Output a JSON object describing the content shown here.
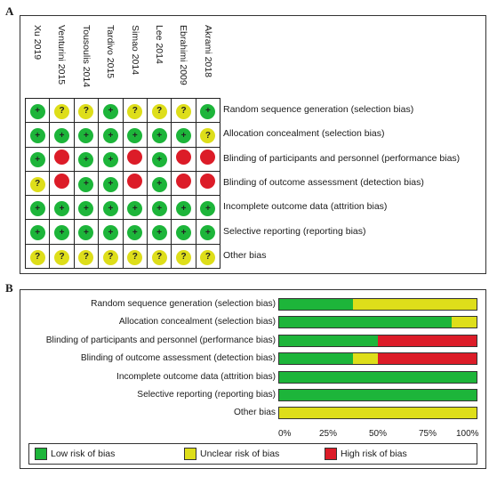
{
  "panel_a": {
    "letter": "A",
    "studies": [
      "Xu 2019",
      "Venturini 2015",
      "Tousoulis 2014",
      "Tardivo 2015",
      "Simao 2014",
      "Lee 2014",
      "Ebrahimi 2009",
      "Akrami 2018"
    ],
    "domains": [
      "Random sequence generation (selection bias)",
      "Allocation concealment (selection bias)",
      "Blinding of participants and personnel (performance bias)",
      "Blinding of outcome assessment (detection bias)",
      "Incomplete outcome data (attrition bias)",
      "Selective reporting (reporting bias)",
      "Other bias"
    ],
    "symbols": {
      "low": "+",
      "unclear": "?",
      "high": ""
    }
  },
  "panel_b": {
    "letter": "B",
    "ticks": [
      "0%",
      "25%",
      "50%",
      "75%",
      "100%"
    ],
    "legend": {
      "low": "Low risk of bias",
      "unclear": "Unclear risk of bias",
      "high": "High risk of bias"
    }
  },
  "colors": {
    "low": "#1db53a",
    "unclear": "#dede1a",
    "high": "#dc1c28"
  },
  "chart_data": [
    {
      "type": "table",
      "columns": [
        "Xu 2019",
        "Venturini 2015",
        "Tousoulis 2014",
        "Tardivo 2015",
        "Simao 2014",
        "Lee 2014",
        "Ebrahimi 2009",
        "Akrami 2018"
      ],
      "rows": [
        "Random sequence generation (selection bias)",
        "Allocation concealment (selection bias)",
        "Blinding of participants and personnel (performance bias)",
        "Blinding of outcome assessment (detection bias)",
        "Incomplete outcome data (attrition bias)",
        "Selective reporting (reporting bias)",
        "Other bias"
      ],
      "values": [
        [
          "low",
          "unclear",
          "unclear",
          "low",
          "unclear",
          "unclear",
          "unclear",
          "low"
        ],
        [
          "low",
          "low",
          "low",
          "low",
          "low",
          "low",
          "low",
          "unclear"
        ],
        [
          "low",
          "high",
          "low",
          "low",
          "high",
          "low",
          "high",
          "high"
        ],
        [
          "unclear",
          "high",
          "low",
          "low",
          "high",
          "low",
          "high",
          "high"
        ],
        [
          "low",
          "low",
          "low",
          "low",
          "low",
          "low",
          "low",
          "low"
        ],
        [
          "low",
          "low",
          "low",
          "low",
          "low",
          "low",
          "low",
          "low"
        ],
        [
          "unclear",
          "unclear",
          "unclear",
          "unclear",
          "unclear",
          "unclear",
          "unclear",
          "unclear"
        ]
      ]
    },
    {
      "type": "bar",
      "stacked": true,
      "orientation": "horizontal",
      "categories": [
        "Random sequence generation (selection bias)",
        "Allocation concealment (selection bias)",
        "Blinding of participants and personnel (performance bias)",
        "Blinding of outcome assessment (detection bias)",
        "Incomplete outcome data (attrition bias)",
        "Selective reporting (reporting bias)",
        "Other bias"
      ],
      "series": [
        {
          "name": "Low risk of bias",
          "key": "low",
          "values": [
            37.5,
            87.5,
            50,
            37.5,
            100,
            100,
            0
          ]
        },
        {
          "name": "Unclear risk of bias",
          "key": "unclear",
          "values": [
            62.5,
            12.5,
            0,
            12.5,
            0,
            0,
            100
          ]
        },
        {
          "name": "High risk of bias",
          "key": "high",
          "values": [
            0,
            0,
            50,
            50,
            0,
            0,
            0
          ]
        }
      ],
      "xlim": [
        0,
        100
      ],
      "legend_position": "bottom"
    }
  ]
}
